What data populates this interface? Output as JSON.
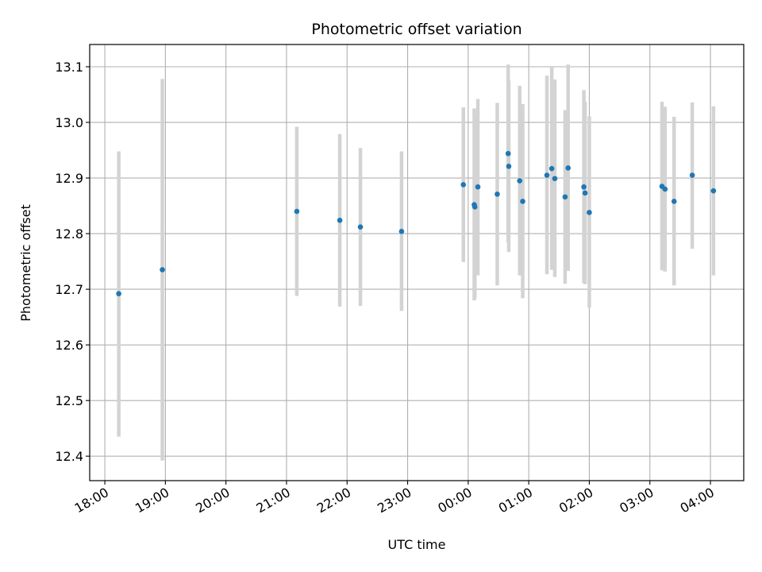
{
  "chart_data": {
    "type": "scatter",
    "title": "Photometric offset variation",
    "xlabel": "UTC time",
    "ylabel": "Photometric offset",
    "x_unit": "hours since 18:00 UTC",
    "xlim": [
      -0.25,
      10.55
    ],
    "ylim": [
      12.356,
      13.14
    ],
    "grid": true,
    "marker_color": "#1f77b4",
    "errorbar_color": "#d3d3d3",
    "x_ticks": [
      {
        "value": 0,
        "label": "18:00"
      },
      {
        "value": 1,
        "label": "19:00"
      },
      {
        "value": 2,
        "label": "20:00"
      },
      {
        "value": 3,
        "label": "21:00"
      },
      {
        "value": 4,
        "label": "22:00"
      },
      {
        "value": 5,
        "label": "23:00"
      },
      {
        "value": 6,
        "label": "00:00"
      },
      {
        "value": 7,
        "label": "01:00"
      },
      {
        "value": 8,
        "label": "02:00"
      },
      {
        "value": 9,
        "label": "03:00"
      },
      {
        "value": 10,
        "label": "04:00"
      }
    ],
    "y_ticks": [
      {
        "value": 12.4,
        "label": "12.4"
      },
      {
        "value": 12.5,
        "label": "12.5"
      },
      {
        "value": 12.6,
        "label": "12.6"
      },
      {
        "value": 12.7,
        "label": "12.7"
      },
      {
        "value": 12.8,
        "label": "12.8"
      },
      {
        "value": 12.9,
        "label": "12.9"
      },
      {
        "value": 13.0,
        "label": "13.0"
      },
      {
        "value": 13.1,
        "label": "13.1"
      }
    ],
    "points": [
      {
        "x": 0.23,
        "y": 12.692,
        "lo": 12.435,
        "hi": 12.948
      },
      {
        "x": 0.95,
        "y": 12.735,
        "lo": 12.392,
        "hi": 13.078
      },
      {
        "x": 3.17,
        "y": 12.84,
        "lo": 12.688,
        "hi": 12.992
      },
      {
        "x": 3.88,
        "y": 12.824,
        "lo": 12.669,
        "hi": 12.979
      },
      {
        "x": 4.22,
        "y": 12.812,
        "lo": 12.67,
        "hi": 12.954
      },
      {
        "x": 4.9,
        "y": 12.804,
        "lo": 12.661,
        "hi": 12.948
      },
      {
        "x": 5.92,
        "y": 12.888,
        "lo": 12.749,
        "hi": 13.027
      },
      {
        "x": 6.1,
        "y": 12.852,
        "lo": 12.68,
        "hi": 13.025
      },
      {
        "x": 6.11,
        "y": 12.848,
        "lo": 12.684,
        "hi": 13.012
      },
      {
        "x": 6.16,
        "y": 12.884,
        "lo": 12.725,
        "hi": 13.042
      },
      {
        "x": 6.48,
        "y": 12.871,
        "lo": 12.707,
        "hi": 13.035
      },
      {
        "x": 6.66,
        "y": 12.944,
        "lo": 12.784,
        "hi": 13.104
      },
      {
        "x": 6.67,
        "y": 12.921,
        "lo": 12.767,
        "hi": 13.075
      },
      {
        "x": 6.85,
        "y": 12.895,
        "lo": 12.725,
        "hi": 13.066
      },
      {
        "x": 6.9,
        "y": 12.858,
        "lo": 12.684,
        "hi": 13.033
      },
      {
        "x": 7.3,
        "y": 12.905,
        "lo": 12.727,
        "hi": 13.084
      },
      {
        "x": 7.38,
        "y": 12.917,
        "lo": 12.735,
        "hi": 13.1
      },
      {
        "x": 7.43,
        "y": 12.899,
        "lo": 12.722,
        "hi": 13.077
      },
      {
        "x": 7.6,
        "y": 12.866,
        "lo": 12.71,
        "hi": 13.022
      },
      {
        "x": 7.65,
        "y": 12.918,
        "lo": 12.733,
        "hi": 13.104
      },
      {
        "x": 7.91,
        "y": 12.884,
        "lo": 12.711,
        "hi": 13.058
      },
      {
        "x": 7.93,
        "y": 12.873,
        "lo": 12.709,
        "hi": 13.037
      },
      {
        "x": 8.0,
        "y": 12.838,
        "lo": 12.667,
        "hi": 13.011
      },
      {
        "x": 9.2,
        "y": 12.885,
        "lo": 12.734,
        "hi": 13.037
      },
      {
        "x": 9.25,
        "y": 12.88,
        "lo": 12.732,
        "hi": 13.028
      },
      {
        "x": 9.4,
        "y": 12.858,
        "lo": 12.707,
        "hi": 13.01
      },
      {
        "x": 9.7,
        "y": 12.905,
        "lo": 12.773,
        "hi": 13.036
      },
      {
        "x": 10.05,
        "y": 12.877,
        "lo": 12.725,
        "hi": 13.029
      }
    ]
  }
}
